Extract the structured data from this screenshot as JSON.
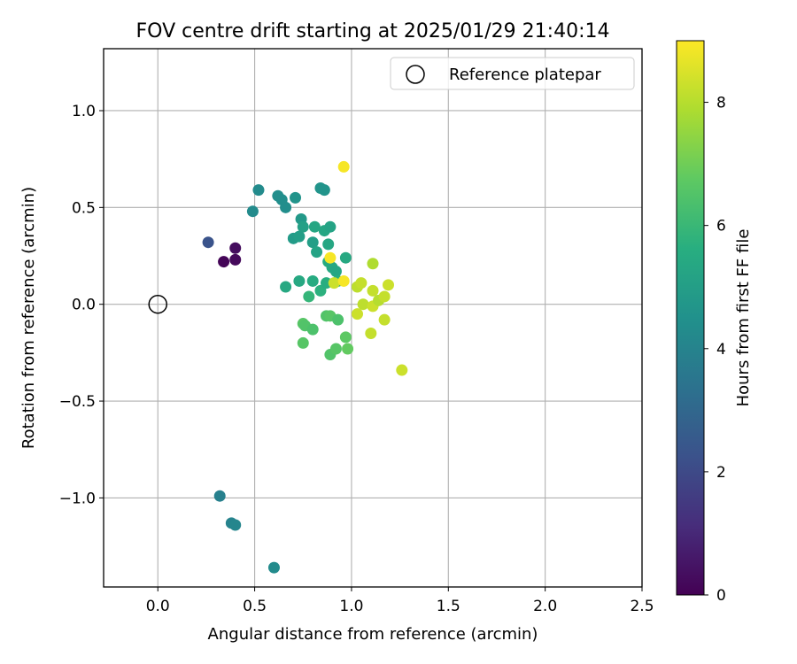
{
  "chart_data": {
    "type": "scatter",
    "title": "FOV centre drift starting at 2025/01/29 21:40:14",
    "xlabel": "Angular distance from reference (arcmin)",
    "ylabel": "Rotation from reference (arcmin)",
    "xlim": [
      -0.28,
      2.5
    ],
    "ylim": [
      -1.46,
      1.32
    ],
    "xticks": [
      0.0,
      0.5,
      1.0,
      1.5,
      2.0,
      2.5
    ],
    "xtick_labels": [
      "0.0",
      "0.5",
      "1.0",
      "1.5",
      "2.0",
      "2.5"
    ],
    "yticks": [
      1.0,
      0.5,
      0.0,
      -0.5,
      -1.0
    ],
    "ytick_labels": [
      "1.0",
      "0.5",
      "0.0",
      "−0.5",
      "−1.0"
    ],
    "grid": true,
    "legend": {
      "position": "upper-right",
      "entries": [
        "Reference platepar"
      ]
    },
    "reference_point": {
      "x": 0.0,
      "y": 0.0
    },
    "colorbar": {
      "label": "Hours from first FF file",
      "colormap": "viridis",
      "range": [
        0,
        9
      ],
      "ticks": [
        0,
        2,
        4,
        6,
        8
      ],
      "tick_labels": [
        "0",
        "2",
        "4",
        "6",
        "8"
      ]
    },
    "points": [
      {
        "x": 0.34,
        "y": 0.22,
        "c": 0.1
      },
      {
        "x": 0.4,
        "y": 0.23,
        "c": 0.2
      },
      {
        "x": 0.4,
        "y": 0.29,
        "c": 0.3
      },
      {
        "x": 0.26,
        "y": 0.32,
        "c": 2.3
      },
      {
        "x": 0.32,
        "y": -0.99,
        "c": 3.9
      },
      {
        "x": 0.38,
        "y": -1.13,
        "c": 4.0
      },
      {
        "x": 0.4,
        "y": -1.14,
        "c": 4.1
      },
      {
        "x": 0.6,
        "y": -1.36,
        "c": 4.3
      },
      {
        "x": 0.52,
        "y": 0.59,
        "c": 4.3
      },
      {
        "x": 0.49,
        "y": 0.48,
        "c": 4.3
      },
      {
        "x": 0.62,
        "y": 0.56,
        "c": 4.4
      },
      {
        "x": 0.64,
        "y": 0.54,
        "c": 4.4
      },
      {
        "x": 0.66,
        "y": 0.5,
        "c": 4.4
      },
      {
        "x": 0.71,
        "y": 0.55,
        "c": 4.6
      },
      {
        "x": 0.84,
        "y": 0.6,
        "c": 4.6
      },
      {
        "x": 0.86,
        "y": 0.59,
        "c": 4.6
      },
      {
        "x": 0.74,
        "y": 0.44,
        "c": 4.8
      },
      {
        "x": 0.75,
        "y": 0.4,
        "c": 5.1
      },
      {
        "x": 0.7,
        "y": 0.34,
        "c": 4.9
      },
      {
        "x": 0.73,
        "y": 0.35,
        "c": 5.0
      },
      {
        "x": 0.8,
        "y": 0.32,
        "c": 5.0
      },
      {
        "x": 0.82,
        "y": 0.27,
        "c": 5.2
      },
      {
        "x": 0.81,
        "y": 0.4,
        "c": 5.3
      },
      {
        "x": 0.86,
        "y": 0.38,
        "c": 5.3
      },
      {
        "x": 0.89,
        "y": 0.4,
        "c": 5.2
      },
      {
        "x": 0.88,
        "y": 0.31,
        "c": 5.3
      },
      {
        "x": 0.97,
        "y": 0.24,
        "c": 5.4
      },
      {
        "x": 0.88,
        "y": 0.22,
        "c": 5.5
      },
      {
        "x": 0.9,
        "y": 0.19,
        "c": 5.4
      },
      {
        "x": 0.92,
        "y": 0.17,
        "c": 5.3
      },
      {
        "x": 0.66,
        "y": 0.09,
        "c": 5.4
      },
      {
        "x": 0.73,
        "y": 0.12,
        "c": 5.4
      },
      {
        "x": 0.8,
        "y": 0.12,
        "c": 5.5
      },
      {
        "x": 0.84,
        "y": 0.07,
        "c": 5.7
      },
      {
        "x": 0.78,
        "y": 0.04,
        "c": 5.9
      },
      {
        "x": 0.87,
        "y": 0.11,
        "c": 5.6
      },
      {
        "x": 0.93,
        "y": 0.12,
        "c": 5.6
      },
      {
        "x": 0.75,
        "y": -0.1,
        "c": 6.6
      },
      {
        "x": 0.76,
        "y": -0.11,
        "c": 6.5
      },
      {
        "x": 0.8,
        "y": -0.13,
        "c": 6.4
      },
      {
        "x": 0.87,
        "y": -0.06,
        "c": 6.5
      },
      {
        "x": 0.89,
        "y": -0.06,
        "c": 6.6
      },
      {
        "x": 0.93,
        "y": -0.08,
        "c": 6.4
      },
      {
        "x": 0.75,
        "y": -0.2,
        "c": 6.6
      },
      {
        "x": 0.89,
        "y": -0.26,
        "c": 6.5
      },
      {
        "x": 0.92,
        "y": -0.23,
        "c": 6.6
      },
      {
        "x": 0.97,
        "y": -0.17,
        "c": 6.7
      },
      {
        "x": 0.98,
        "y": -0.23,
        "c": 6.8
      },
      {
        "x": 0.96,
        "y": 0.71,
        "c": 8.9
      },
      {
        "x": 0.89,
        "y": 0.24,
        "c": 8.9
      },
      {
        "x": 0.91,
        "y": 0.11,
        "c": 8.3
      },
      {
        "x": 0.96,
        "y": 0.12,
        "c": 8.9
      },
      {
        "x": 1.03,
        "y": 0.09,
        "c": 8.1
      },
      {
        "x": 1.05,
        "y": 0.11,
        "c": 8.2
      },
      {
        "x": 1.11,
        "y": 0.21,
        "c": 7.9
      },
      {
        "x": 1.03,
        "y": -0.05,
        "c": 8.3
      },
      {
        "x": 1.06,
        "y": 0.0,
        "c": 8.1
      },
      {
        "x": 1.11,
        "y": 0.07,
        "c": 8.2
      },
      {
        "x": 1.11,
        "y": -0.01,
        "c": 8.3
      },
      {
        "x": 1.14,
        "y": 0.02,
        "c": 8.0
      },
      {
        "x": 1.17,
        "y": 0.04,
        "c": 8.2
      },
      {
        "x": 1.19,
        "y": 0.1,
        "c": 8.3
      },
      {
        "x": 1.17,
        "y": -0.08,
        "c": 8.2
      },
      {
        "x": 1.1,
        "y": -0.15,
        "c": 8.2
      },
      {
        "x": 1.26,
        "y": -0.34,
        "c": 8.3
      }
    ]
  }
}
